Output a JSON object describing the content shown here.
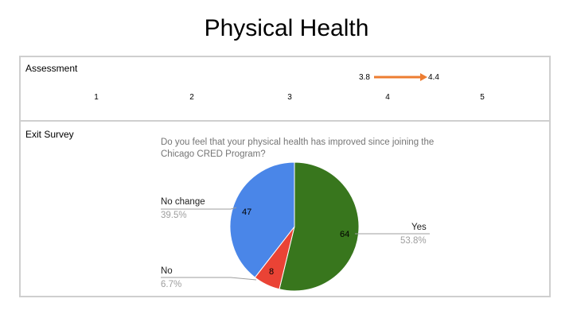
{
  "slide": {
    "title": "Physical Health"
  },
  "assessment": {
    "label": "Assessment",
    "scale_ticks": [
      "1",
      "2",
      "3",
      "4",
      "5"
    ],
    "from_value": "3.8",
    "to_value": "4.4",
    "arrow_color": "#ed7d31"
  },
  "exit_survey": {
    "label": "Exit Survey"
  },
  "chart_data": [
    {
      "type": "arrow-scale",
      "xlim": [
        1,
        5
      ],
      "ticks": [
        1,
        2,
        3,
        4,
        5
      ],
      "from": 3.8,
      "to": 4.4,
      "from_label": "3.8",
      "to_label": "4.4",
      "color": "#ed7d31"
    },
    {
      "type": "pie",
      "title": "Do you feel that your physical health has improved since joining the Chicago CRED Program?",
      "slices": [
        {
          "label": "Yes",
          "value": 64,
          "value_label": "64",
          "percent_label": "53.8%",
          "color": "#38761d"
        },
        {
          "label": "No",
          "value": 8,
          "value_label": "8",
          "percent_label": "6.7%",
          "color": "#ea4335"
        },
        {
          "label": "No change",
          "value": 47,
          "value_label": "47",
          "percent_label": "39.5%",
          "color": "#4a86e8"
        }
      ]
    }
  ]
}
